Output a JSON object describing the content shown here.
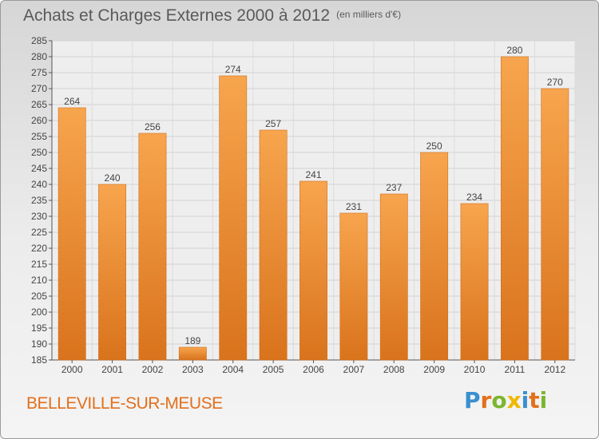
{
  "title": "Achats et Charges Externes 2000 à 2012",
  "unit": "(en milliers d'€)",
  "city": "BELLEVILLE-SUR-MEUSE",
  "logo": {
    "text": "Proxiti",
    "letters": [
      {
        "char": "P",
        "color": "#3a8fd0"
      },
      {
        "char": "r",
        "color": "#e2701c"
      },
      {
        "char": "o",
        "color": "#7bb62e"
      },
      {
        "char": "x",
        "color": "#f0b800"
      },
      {
        "char": "i",
        "color": "#3a8fd0"
      },
      {
        "char": "t",
        "color": "#e2701c"
      },
      {
        "char": "i",
        "color": "#7bb62e"
      }
    ]
  },
  "chart_data": {
    "type": "bar",
    "categories": [
      "2000",
      "2001",
      "2002",
      "2003",
      "2004",
      "2005",
      "2006",
      "2007",
      "2008",
      "2009",
      "2010",
      "2011",
      "2012"
    ],
    "values": [
      264,
      240,
      256,
      189,
      274,
      257,
      241,
      231,
      237,
      250,
      234,
      280,
      270
    ],
    "ylim": [
      185,
      285
    ],
    "yticks": [
      185,
      190,
      195,
      200,
      205,
      210,
      215,
      220,
      225,
      230,
      235,
      240,
      245,
      250,
      255,
      260,
      265,
      270,
      275,
      280,
      285
    ],
    "grid": true,
    "bar_color_top": "#f7a54e",
    "bar_color_bottom": "#d9731c"
  }
}
